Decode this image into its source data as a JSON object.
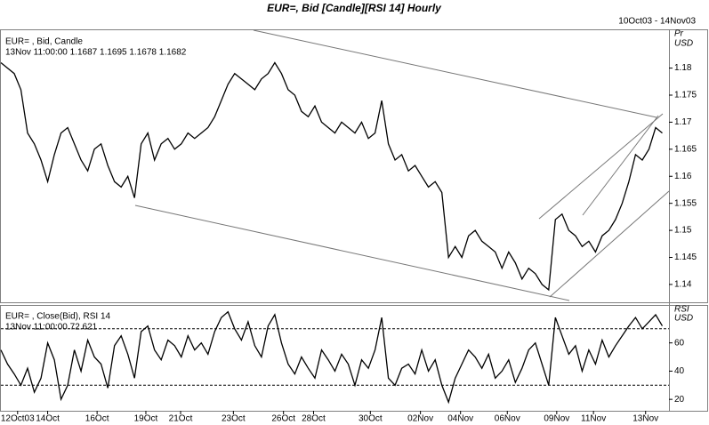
{
  "title": "EUR=, Bid [Candle][RSI 14] Hourly",
  "date_range": "10Oct03 - 14Nov03",
  "chart_data": [
    {
      "type": "line",
      "label": "EUR= , Bid, Candle",
      "info": "13Nov 11:00:00 1.1687 1.1695 1.1678 1.1682",
      "axis_title": "Pr",
      "axis_unit": "USD",
      "color": "#000000",
      "xlim": [
        0,
        100
      ],
      "ylim": [
        1.1367,
        1.187
      ],
      "yticks": [
        1.14,
        1.145,
        1.15,
        1.155,
        1.16,
        1.165,
        1.17,
        1.175,
        1.18
      ],
      "values": [
        1.181,
        1.18,
        1.179,
        1.176,
        1.168,
        1.166,
        1.163,
        1.159,
        1.164,
        1.168,
        1.169,
        1.166,
        1.163,
        1.161,
        1.165,
        1.166,
        1.162,
        1.159,
        1.158,
        1.16,
        1.156,
        1.166,
        1.168,
        1.163,
        1.166,
        1.167,
        1.165,
        1.166,
        1.168,
        1.167,
        1.168,
        1.169,
        1.171,
        1.174,
        1.177,
        1.179,
        1.178,
        1.177,
        1.176,
        1.178,
        1.179,
        1.181,
        1.179,
        1.176,
        1.175,
        1.172,
        1.171,
        1.173,
        1.17,
        1.169,
        1.168,
        1.17,
        1.169,
        1.168,
        1.17,
        1.167,
        1.168,
        1.174,
        1.166,
        1.163,
        1.164,
        1.161,
        1.162,
        1.16,
        1.158,
        1.159,
        1.157,
        1.145,
        1.147,
        1.145,
        1.149,
        1.15,
        1.148,
        1.147,
        1.146,
        1.143,
        1.146,
        1.144,
        1.141,
        1.143,
        1.142,
        1.14,
        1.139,
        1.152,
        1.153,
        1.15,
        1.149,
        1.147,
        1.148,
        1.146,
        1.149,
        1.15,
        1.152,
        1.155,
        1.159,
        1.164,
        1.163,
        1.165,
        1.169,
        1.168
      ]
    },
    {
      "type": "line",
      "label": "EUR= , Close(Bid), RSI 14",
      "info": "13Nov 11:00:00 72.621",
      "axis_title": "RSI",
      "axis_unit": "USD",
      "color": "#000000",
      "xlim": [
        0,
        100
      ],
      "ylim": [
        11.9,
        86.25
      ],
      "yticks": [
        20,
        40,
        60
      ],
      "hlines": [
        70,
        30
      ],
      "xticks": [
        {
          "value": 2.5,
          "label": "12Oct03"
        },
        {
          "value": 7,
          "label": "14Oct"
        },
        {
          "value": 14.4,
          "label": "16Oct"
        },
        {
          "value": 21.7,
          "label": "19Oct"
        },
        {
          "value": 26.9,
          "label": "21Oct"
        },
        {
          "value": 34.8,
          "label": "23Oct"
        },
        {
          "value": 42.3,
          "label": "26Oct"
        },
        {
          "value": 46.8,
          "label": "28Oct"
        },
        {
          "value": 55.3,
          "label": "30Oct"
        },
        {
          "value": 62.8,
          "label": "02Nov"
        },
        {
          "value": 68.8,
          "label": "04Nov"
        },
        {
          "value": 75.8,
          "label": "06Nov"
        },
        {
          "value": 83.2,
          "label": "09Nov"
        },
        {
          "value": 88.7,
          "label": "11Nov"
        },
        {
          "value": 96.5,
          "label": "13Nov"
        }
      ],
      "values": [
        55,
        45,
        38,
        30,
        42,
        25,
        35,
        60,
        48,
        20,
        30,
        55,
        40,
        62,
        50,
        45,
        28,
        58,
        65,
        52,
        35,
        68,
        72,
        55,
        48,
        62,
        58,
        50,
        65,
        55,
        60,
        52,
        68,
        78,
        82,
        70,
        62,
        75,
        58,
        50,
        72,
        80,
        60,
        45,
        38,
        50,
        42,
        35,
        55,
        48,
        40,
        52,
        45,
        30,
        48,
        42,
        55,
        78,
        35,
        30,
        42,
        45,
        38,
        55,
        40,
        48,
        30,
        18,
        35,
        45,
        55,
        50,
        42,
        52,
        35,
        40,
        48,
        32,
        42,
        55,
        60,
        45,
        30,
        78,
        65,
        52,
        58,
        40,
        55,
        45,
        62,
        50,
        58,
        65,
        72,
        78,
        70,
        75,
        80,
        72
      ]
    }
  ]
}
